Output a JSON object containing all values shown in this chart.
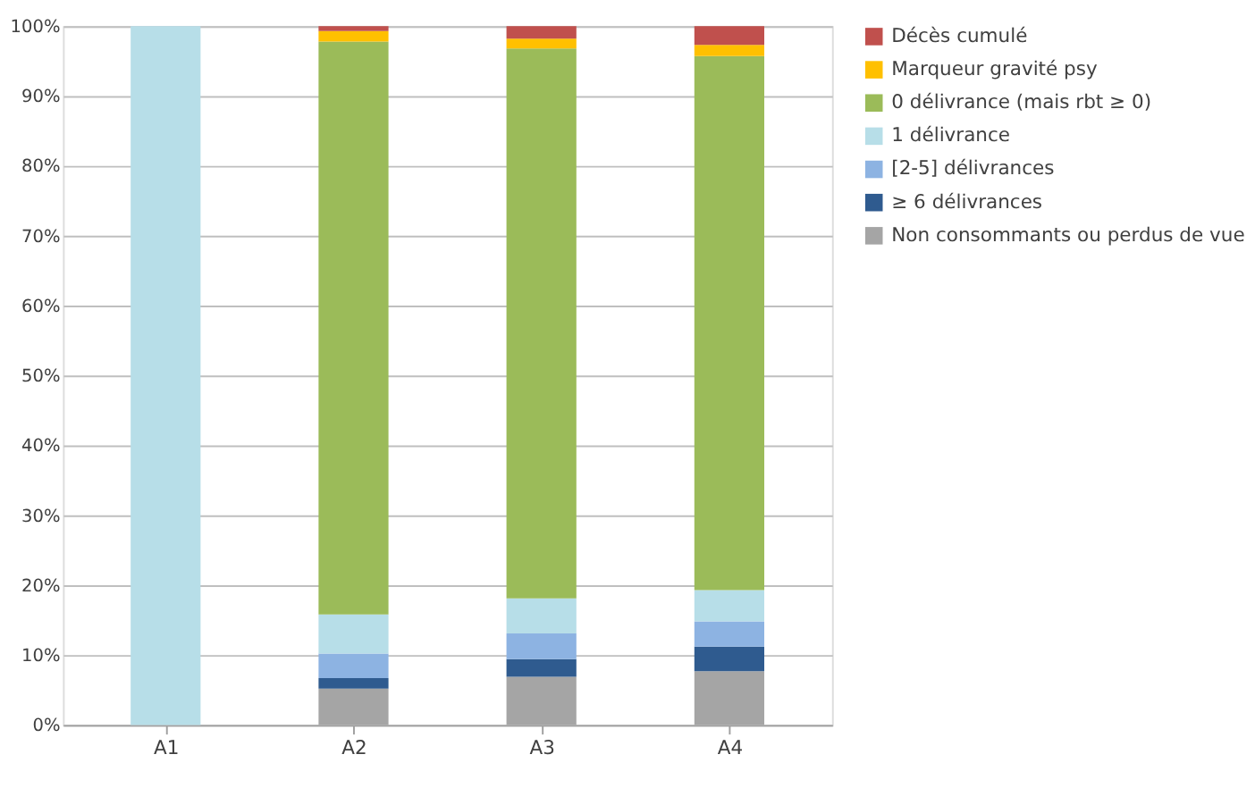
{
  "chart_data": {
    "type": "bar",
    "stacked": true,
    "categories": [
      "A1",
      "A2",
      "A3",
      "A4"
    ],
    "series": [
      {
        "name": "Non consommants ou perdus de vue",
        "color": "#a5a5a5",
        "values": [
          0,
          5.2,
          6.9,
          7.7
        ]
      },
      {
        "name": "≥ 6 délivrances",
        "color": "#2f5b8f",
        "values": [
          0,
          1.5,
          2.5,
          3.5
        ]
      },
      {
        "name": "[2-5] délivrances",
        "color": "#8db3e2",
        "values": [
          0,
          3.5,
          3.7,
          3.6
        ]
      },
      {
        "name": "1 délivrance",
        "color": "#b7dee8",
        "values": [
          100,
          5.6,
          5.0,
          4.5
        ]
      },
      {
        "name": "0 délivrance  (mais rbt ≥ 0)",
        "color": "#9bbb59",
        "values": [
          0,
          82.0,
          78.7,
          76.4
        ]
      },
      {
        "name": "Marqueur gravité psy",
        "color": "#ffc000",
        "values": [
          0,
          1.5,
          1.4,
          1.6
        ]
      },
      {
        "name": "Décès cumulé",
        "color": "#c0504d",
        "values": [
          0,
          0.7,
          1.8,
          2.7
        ]
      }
    ],
    "ylim": [
      0,
      100
    ],
    "yticks": [
      {
        "value": 0,
        "label": "0%"
      },
      {
        "value": 10,
        "label": "10%"
      },
      {
        "value": 20,
        "label": "20%"
      },
      {
        "value": 30,
        "label": "30%"
      },
      {
        "value": 40,
        "label": "40%"
      },
      {
        "value": 50,
        "label": "50%"
      },
      {
        "value": 60,
        "label": "60%"
      },
      {
        "value": 70,
        "label": "70%"
      },
      {
        "value": 80,
        "label": "80%"
      },
      {
        "value": 90,
        "label": "90%"
      },
      {
        "value": 100,
        "label": "100%"
      }
    ],
    "grid": "y",
    "legend": "right"
  }
}
